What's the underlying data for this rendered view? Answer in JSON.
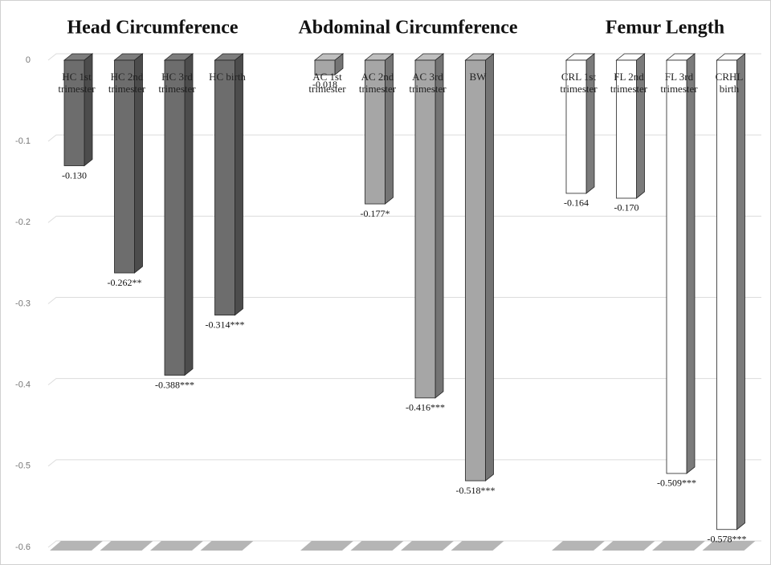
{
  "chart_data": {
    "type": "bar3d",
    "ylim": [
      -0.6,
      0
    ],
    "yticks": [
      0,
      -0.1,
      -0.2,
      -0.3,
      -0.4,
      -0.5,
      -0.6
    ],
    "grid": true,
    "series": [
      {
        "name": "Head Circumference",
        "color": "#6d6d6d",
        "categories": [
          [
            "HC 1st",
            "trimester"
          ],
          [
            "HC 2nd",
            "trimester"
          ],
          [
            "HC 3rd",
            "trimester"
          ],
          [
            "HC birth"
          ]
        ],
        "values": [
          -0.13,
          -0.262,
          -0.388,
          -0.314
        ],
        "value_labels": [
          "-0.130",
          "-0.262**",
          "-0.388***",
          "-0.314***"
        ]
      },
      {
        "name": "Abdominal Circumference",
        "color": "#a6a6a6",
        "categories": [
          [
            "AC 1st",
            "trimester"
          ],
          [
            "AC 2nd",
            "trimester"
          ],
          [
            "AC 3rd",
            "trimester"
          ],
          [
            "BW"
          ]
        ],
        "values": [
          -0.018,
          -0.177,
          -0.416,
          -0.518
        ],
        "value_labels": [
          "-0.018",
          "-0.177*",
          "-0.416***",
          "-0.518***"
        ]
      },
      {
        "name": "Femur Length",
        "color": "#ffffff",
        "categories": [
          [
            "CRL 1st",
            "trimester"
          ],
          [
            "FL 2nd",
            "trimester"
          ],
          [
            "FL 3rd",
            "trimester"
          ],
          [
            "CRHL",
            "birth"
          ]
        ],
        "values": [
          -0.164,
          -0.17,
          -0.509,
          -0.578
        ],
        "value_labels": [
          "-0.164",
          "-0.170",
          "-0.509***",
          "-0.578***"
        ]
      }
    ]
  }
}
